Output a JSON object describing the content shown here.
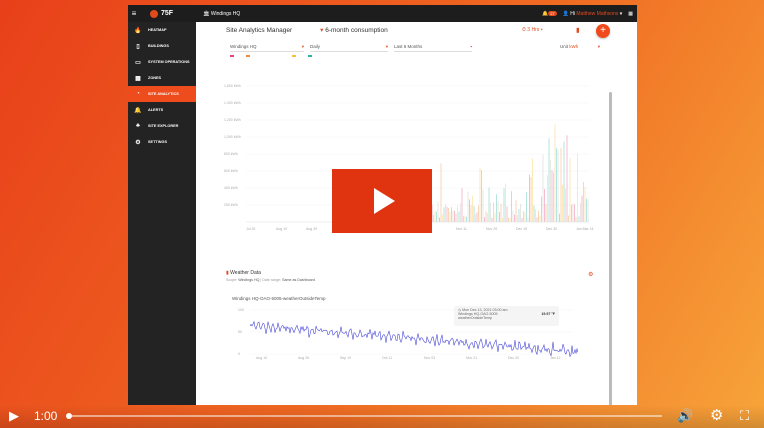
{
  "app": {
    "logo": "75F",
    "site": "Windings HQ",
    "notifications": "27",
    "greeting": "Hi",
    "user": "Matthew Mathsons"
  },
  "sidebar": {
    "items": [
      {
        "label": "HEATMAP",
        "icon": "flame-icon"
      },
      {
        "label": "BUILDINGS",
        "icon": "building-icon"
      },
      {
        "label": "SYSTEM OPERATIONS",
        "icon": "monitor-icon"
      },
      {
        "label": "ZONES",
        "icon": "grid-icon"
      },
      {
        "label": "SITE ANALYTICS",
        "icon": "analytics-icon",
        "active": true
      },
      {
        "label": "ALERTS",
        "icon": "bell-icon"
      },
      {
        "label": "SITE EXPLORER",
        "icon": "hierarchy-icon"
      },
      {
        "label": "SETTINGS",
        "icon": "gear-icon"
      }
    ]
  },
  "header": {
    "title": "Site Analytics Manager",
    "view": "6-month consumption",
    "refresh": "3 Hrs"
  },
  "filters": {
    "site": "Windings HQ",
    "interval": "Daily",
    "range": "Last 6 Months",
    "unit_label": "Unit",
    "unit": "kWh"
  },
  "energy_chart": {
    "yticks": [
      "1,600 kWh",
      "1,400 kWh",
      "1,200 kWh",
      "1,000 kWh",
      "800 kWh",
      "600 kWh",
      "400 kWh",
      "200 kWh"
    ],
    "xticks": [
      "Jul 29",
      "Aug 10",
      "Aug 29",
      "",
      "",
      "",
      "",
      "Nov 11",
      "Nov 29",
      "Dec 15",
      "Dec 30",
      "Jan Mar 14"
    ],
    "colors": [
      "#e8457a",
      "#f08a3c",
      "#f5c23c",
      "#2bb5a0",
      "#bbbbbb"
    ]
  },
  "weather": {
    "title": "Weather Data",
    "scope_label": "Scope:",
    "scope": "Windings HQ",
    "range_label": "Date range:",
    "range": "Same as Dashboard",
    "series": "Windings HQ-OAO-5005-weatherOutsideTemp",
    "yticks": [
      "100",
      "50",
      "0"
    ],
    "xticks": [
      "Aug 10",
      "Aug 26",
      "Sep 10",
      "Oct 11",
      "Nov 03",
      "Nov 21",
      "Dec 20",
      "Jan 12"
    ],
    "tooltip": {
      "date": "Mon Dec 13, 2021 03:00 am",
      "name": "Windings HQ-OAO-5005 weatherOutsideTemp",
      "value": "19.97 °F"
    }
  },
  "player": {
    "time": "1:00",
    "progress": 0.0
  }
}
